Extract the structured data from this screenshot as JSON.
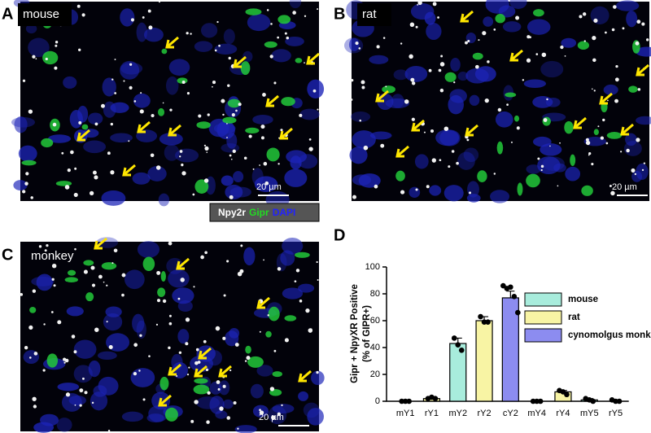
{
  "panels": [
    {
      "label": "A",
      "title": "mouse",
      "scale_bar": "20 µm"
    },
    {
      "label": "B",
      "title": "rat",
      "scale_bar": "20 µm"
    },
    {
      "label": "C",
      "title": "monkey",
      "scale_bar": "20 µm"
    }
  ],
  "stain_legend": [
    {
      "text": "Npy2r",
      "color": "#ffffff"
    },
    {
      "text": "Gipr",
      "color": "#22dd22"
    },
    {
      "text": "DAPI",
      "color": "#2222ff"
    }
  ],
  "chart_data": {
    "type": "bar",
    "panel_label": "D",
    "y_label": [
      "Gipr + NpyXR Positive",
      "(% of GIPR+)"
    ],
    "categories": [
      "mY1",
      "rY1",
      "mY2",
      "rY2",
      "cY2",
      "mY4",
      "rY4",
      "mY5",
      "rY5"
    ],
    "ylim": [
      0,
      100
    ],
    "yticks": [
      0,
      20,
      40,
      60,
      80,
      100
    ],
    "series": [
      {
        "name": "mouse",
        "color": "#a8ecdc",
        "values": [
          0,
          null,
          43,
          null,
          null,
          0,
          null,
          1,
          null
        ],
        "errors": [
          0,
          null,
          4,
          null,
          null,
          0,
          null,
          1,
          null
        ],
        "points": [
          [
            0,
            0,
            0
          ],
          null,
          [
            47,
            42,
            38
          ],
          null,
          null,
          [
            0,
            0,
            0
          ],
          null,
          [
            2,
            1,
            0
          ],
          null
        ]
      },
      {
        "name": "rat",
        "color": "#f8f4a4",
        "values": [
          null,
          2,
          null,
          60,
          null,
          null,
          7,
          null,
          0
        ],
        "errors": [
          null,
          1,
          null,
          3,
          null,
          null,
          1,
          null,
          0
        ],
        "points": [
          null,
          [
            2,
            3,
            2
          ],
          null,
          [
            63,
            59,
            59
          ],
          null,
          null,
          [
            8,
            7,
            5
          ],
          null,
          [
            1,
            0,
            0
          ]
        ]
      },
      {
        "name": "cynomolgus monkey",
        "color": "#8c8cf0",
        "values": [
          null,
          null,
          null,
          null,
          77,
          null,
          null,
          null,
          null
        ],
        "errors": [
          null,
          null,
          null,
          null,
          5,
          null,
          null,
          null,
          null
        ],
        "points": [
          null,
          null,
          null,
          null,
          [
            86,
            84,
            85,
            78,
            66
          ],
          null,
          null,
          null,
          null
        ]
      }
    ]
  }
}
